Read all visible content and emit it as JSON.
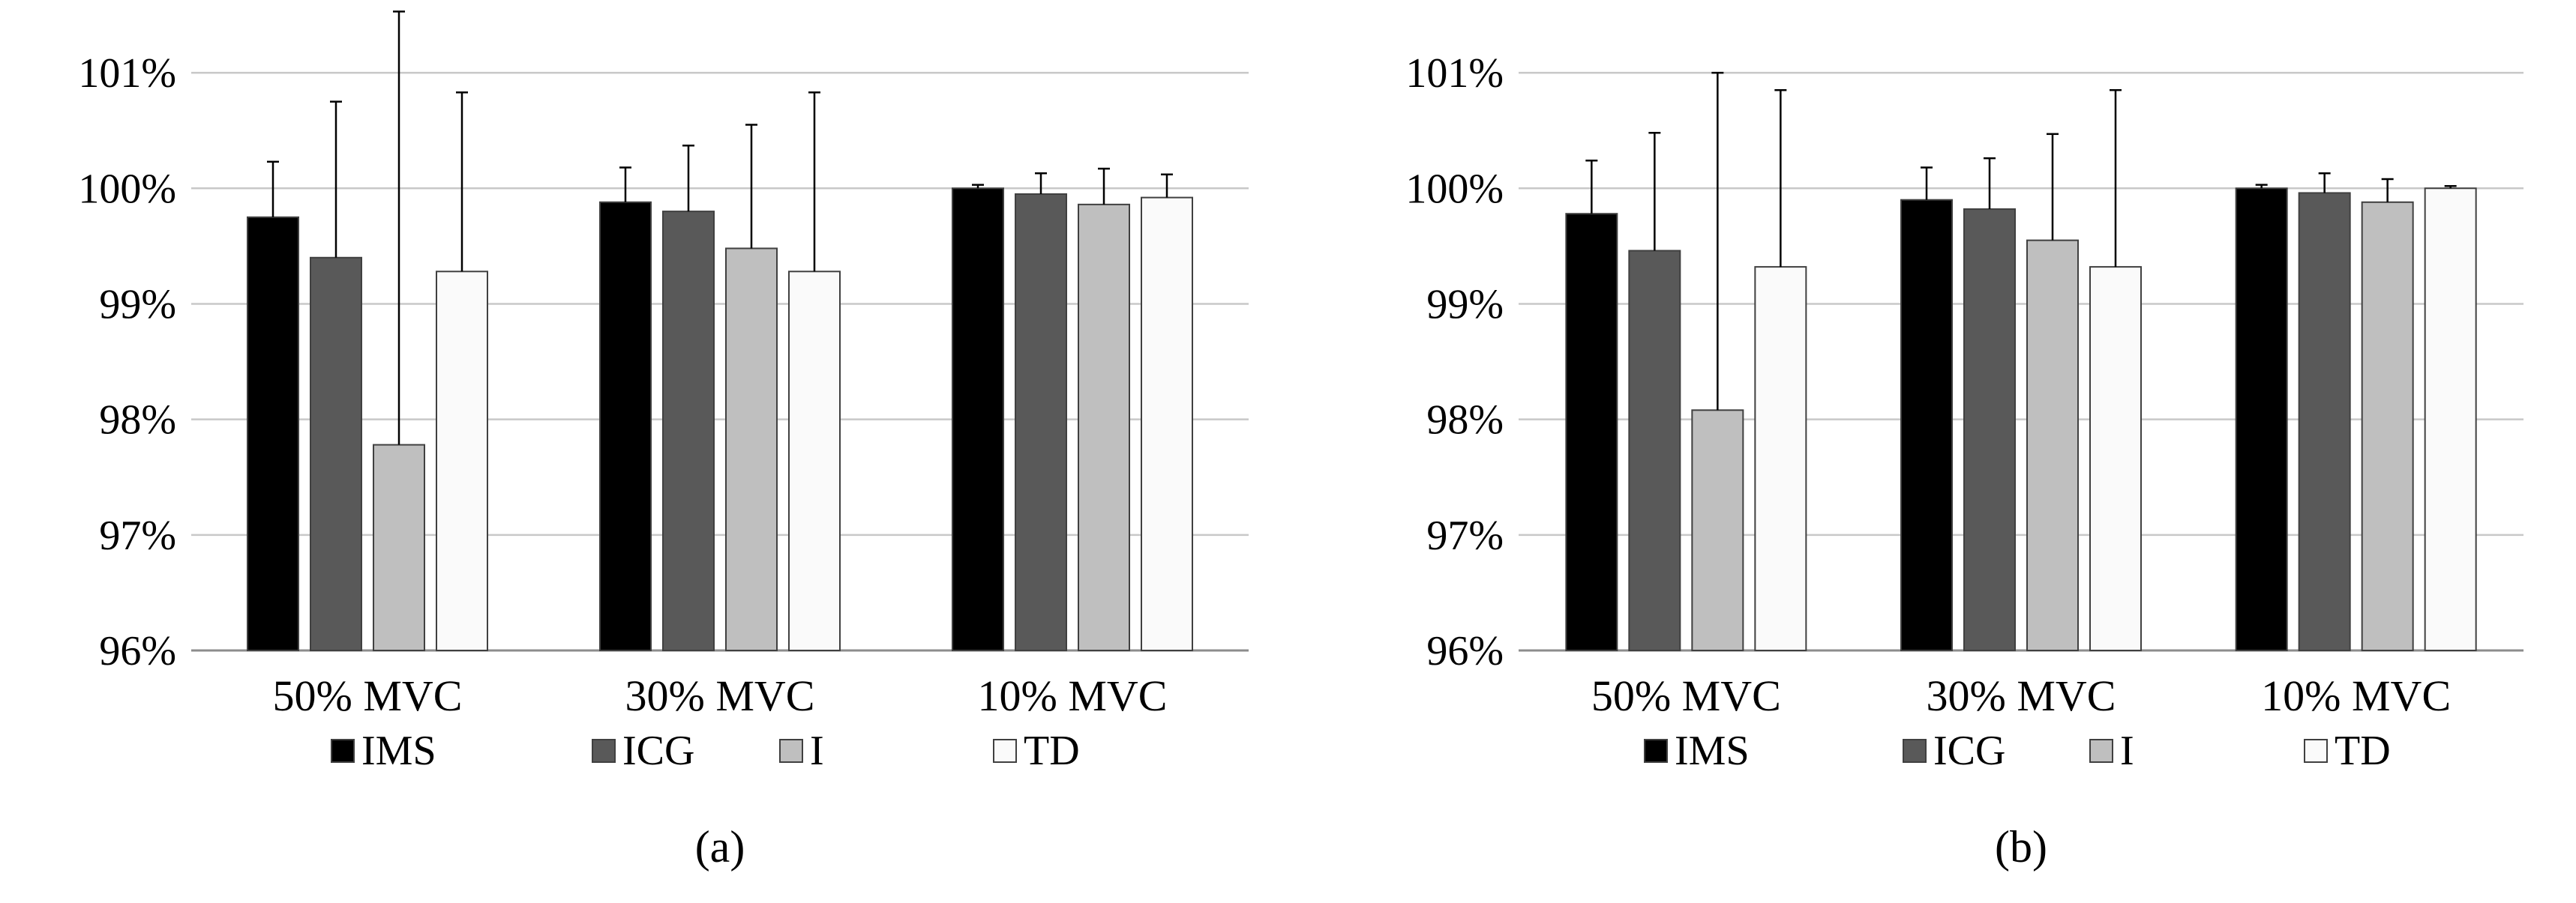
{
  "chart_data": [
    {
      "type": "bar",
      "title": "",
      "xlabel": "",
      "ylabel": "",
      "panel_label": "(a)",
      "ylim": [
        96,
        101.5
      ],
      "yticks": [
        "96%",
        "97%",
        "98%",
        "99%",
        "100%",
        "101%"
      ],
      "ytick_values": [
        96,
        97,
        98,
        99,
        100,
        101
      ],
      "grid": true,
      "legend_position": "bottom",
      "categories": [
        "50% MVC",
        "30% MVC",
        "10% MVC"
      ],
      "series": [
        {
          "name": "IMS",
          "color": "#000000",
          "values": [
            99.75,
            99.88,
            100.0
          ],
          "error": [
            0.48,
            0.3,
            0.03
          ]
        },
        {
          "name": "ICG",
          "color": "#595959",
          "values": [
            99.4,
            99.8,
            99.95
          ],
          "error": [
            1.35,
            0.57,
            0.18
          ]
        },
        {
          "name": "I",
          "color": "#bfbfbf",
          "values": [
            97.78,
            99.48,
            99.86
          ],
          "error": [
            3.75,
            1.07,
            0.31
          ]
        },
        {
          "name": "TD",
          "color": "#fafafa",
          "values": [
            99.28,
            99.28,
            99.92
          ],
          "error": [
            1.55,
            1.55,
            0.2
          ]
        }
      ]
    },
    {
      "type": "bar",
      "title": "",
      "xlabel": "",
      "ylabel": "",
      "panel_label": "(b)",
      "ylim": [
        96,
        101.5
      ],
      "yticks": [
        "96%",
        "97%",
        "98%",
        "99%",
        "100%",
        "101%"
      ],
      "ytick_values": [
        96,
        97,
        98,
        99,
        100,
        101
      ],
      "grid": true,
      "legend_position": "bottom",
      "categories": [
        "50% MVC",
        "30% MVC",
        "10% MVC"
      ],
      "series": [
        {
          "name": "IMS",
          "color": "#000000",
          "values": [
            99.78,
            99.9,
            100.0
          ],
          "error": [
            0.46,
            0.28,
            0.03
          ]
        },
        {
          "name": "ICG",
          "color": "#595959",
          "values": [
            99.46,
            99.82,
            99.96
          ],
          "error": [
            1.02,
            0.44,
            0.17
          ]
        },
        {
          "name": "I",
          "color": "#bfbfbf",
          "values": [
            98.08,
            99.55,
            99.88
          ],
          "error": [
            2.92,
            0.92,
            0.2
          ]
        },
        {
          "name": "TD",
          "color": "#fafafa",
          "values": [
            99.32,
            99.32,
            100.0
          ],
          "error": [
            1.53,
            1.53,
            0.02
          ]
        }
      ]
    }
  ]
}
